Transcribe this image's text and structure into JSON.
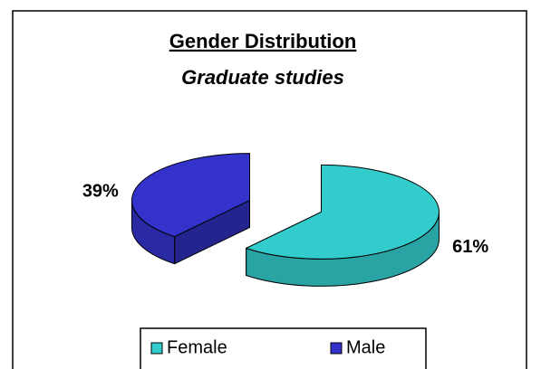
{
  "chart_data": {
    "type": "pie3d",
    "title": "Gender Distribution",
    "subtitle": "Graduate studies",
    "categories": [
      "Female",
      "Male"
    ],
    "values": [
      61,
      39
    ],
    "value_labels": [
      "61%",
      "39%"
    ],
    "colors": [
      "#33cccc",
      "#3333cc"
    ],
    "legend": "bottom"
  }
}
